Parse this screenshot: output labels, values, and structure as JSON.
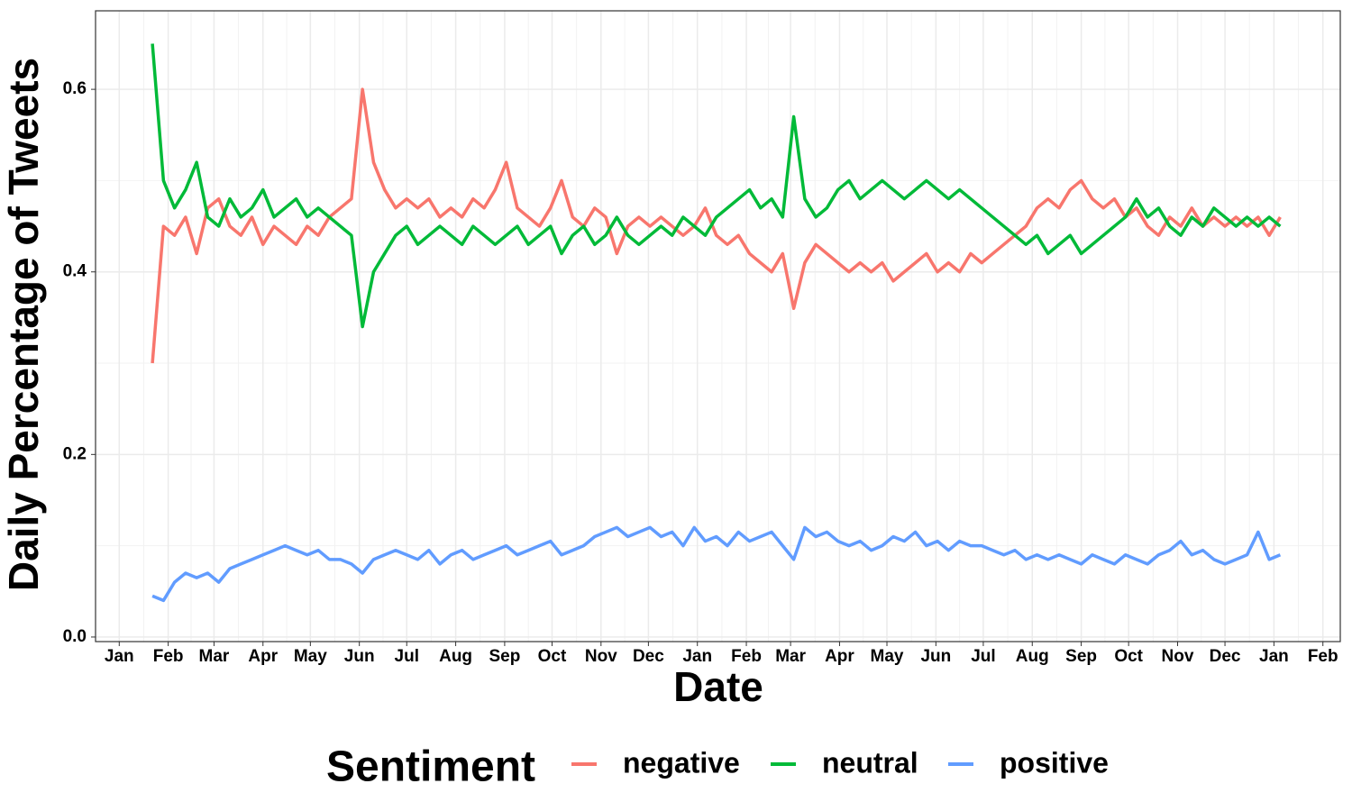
{
  "chart_data": {
    "type": "line",
    "xlabel": "Date",
    "ylabel": "Daily Percentage of Tweets",
    "legend_title": "Sentiment",
    "legend": "bottom",
    "grid": true,
    "xlim": [
      -15,
      773
    ],
    "ylim": [
      -0.005,
      0.686
    ],
    "xticks": [
      {
        "value": 0,
        "label": "Jan"
      },
      {
        "value": 31,
        "label": "Feb"
      },
      {
        "value": 60,
        "label": "Mar"
      },
      {
        "value": 91,
        "label": "Apr"
      },
      {
        "value": 121,
        "label": "May"
      },
      {
        "value": 152,
        "label": "Jun"
      },
      {
        "value": 182,
        "label": "Jul"
      },
      {
        "value": 213,
        "label": "Aug"
      },
      {
        "value": 244,
        "label": "Sep"
      },
      {
        "value": 274,
        "label": "Oct"
      },
      {
        "value": 305,
        "label": "Nov"
      },
      {
        "value": 335,
        "label": "Dec"
      },
      {
        "value": 366,
        "label": "Jan"
      },
      {
        "value": 397,
        "label": "Feb"
      },
      {
        "value": 425,
        "label": "Mar"
      },
      {
        "value": 456,
        "label": "Apr"
      },
      {
        "value": 486,
        "label": "May"
      },
      {
        "value": 517,
        "label": "Jun"
      },
      {
        "value": 547,
        "label": "Jul"
      },
      {
        "value": 578,
        "label": "Aug"
      },
      {
        "value": 609,
        "label": "Sep"
      },
      {
        "value": 639,
        "label": "Oct"
      },
      {
        "value": 670,
        "label": "Nov"
      },
      {
        "value": 700,
        "label": "Dec"
      },
      {
        "value": 731,
        "label": "Jan"
      },
      {
        "value": 762,
        "label": "Feb"
      }
    ],
    "yticks": [
      {
        "value": 0,
        "label": "0.0"
      },
      0.2,
      0.4,
      0.6
    ],
    "x": [
      21,
      28,
      35,
      42,
      49,
      56,
      63,
      70,
      77,
      84,
      91,
      98,
      105,
      112,
      119,
      126,
      133,
      140,
      147,
      154,
      161,
      168,
      175,
      182,
      189,
      196,
      203,
      210,
      217,
      224,
      231,
      238,
      245,
      252,
      259,
      266,
      273,
      280,
      287,
      294,
      301,
      308,
      315,
      322,
      329,
      336,
      343,
      350,
      357,
      364,
      371,
      378,
      385,
      392,
      399,
      406,
      413,
      420,
      427,
      434,
      441,
      448,
      455,
      462,
      469,
      476,
      483,
      490,
      497,
      504,
      511,
      518,
      525,
      532,
      539,
      546,
      553,
      560,
      567,
      574,
      581,
      588,
      595,
      602,
      609,
      616,
      623,
      630,
      637,
      644,
      651,
      658,
      665,
      672,
      679,
      686,
      693,
      700,
      707,
      714,
      721,
      728,
      735
    ],
    "series": [
      {
        "name": "negative",
        "color": "#F8766D",
        "values": [
          0.3,
          0.45,
          0.44,
          0.46,
          0.42,
          0.47,
          0.48,
          0.45,
          0.44,
          0.46,
          0.43,
          0.45,
          0.44,
          0.43,
          0.45,
          0.44,
          0.46,
          0.47,
          0.48,
          0.6,
          0.52,
          0.49,
          0.47,
          0.48,
          0.47,
          0.48,
          0.46,
          0.47,
          0.46,
          0.48,
          0.47,
          0.49,
          0.52,
          0.47,
          0.46,
          0.45,
          0.47,
          0.5,
          0.46,
          0.45,
          0.47,
          0.46,
          0.42,
          0.45,
          0.46,
          0.45,
          0.46,
          0.45,
          0.44,
          0.45,
          0.47,
          0.44,
          0.43,
          0.44,
          0.42,
          0.41,
          0.4,
          0.42,
          0.36,
          0.41,
          0.43,
          0.42,
          0.41,
          0.4,
          0.41,
          0.4,
          0.41,
          0.39,
          0.4,
          0.41,
          0.42,
          0.4,
          0.41,
          0.4,
          0.42,
          0.41,
          0.42,
          0.43,
          0.44,
          0.45,
          0.47,
          0.48,
          0.47,
          0.49,
          0.5,
          0.48,
          0.47,
          0.48,
          0.46,
          0.47,
          0.45,
          0.44,
          0.46,
          0.45,
          0.47,
          0.45,
          0.46,
          0.45,
          0.46,
          0.45,
          0.46,
          0.44,
          0.46
        ]
      },
      {
        "name": "neutral",
        "color": "#00BA38",
        "values": [
          0.65,
          0.5,
          0.47,
          0.49,
          0.52,
          0.46,
          0.45,
          0.48,
          0.46,
          0.47,
          0.49,
          0.46,
          0.47,
          0.48,
          0.46,
          0.47,
          0.46,
          0.45,
          0.44,
          0.34,
          0.4,
          0.42,
          0.44,
          0.45,
          0.43,
          0.44,
          0.45,
          0.44,
          0.43,
          0.45,
          0.44,
          0.43,
          0.44,
          0.45,
          0.43,
          0.44,
          0.45,
          0.42,
          0.44,
          0.45,
          0.43,
          0.44,
          0.46,
          0.44,
          0.43,
          0.44,
          0.45,
          0.44,
          0.46,
          0.45,
          0.44,
          0.46,
          0.47,
          0.48,
          0.49,
          0.47,
          0.48,
          0.46,
          0.57,
          0.48,
          0.46,
          0.47,
          0.49,
          0.5,
          0.48,
          0.49,
          0.5,
          0.49,
          0.48,
          0.49,
          0.5,
          0.49,
          0.48,
          0.49,
          0.48,
          0.47,
          0.46,
          0.45,
          0.44,
          0.43,
          0.44,
          0.42,
          0.43,
          0.44,
          0.42,
          0.43,
          0.44,
          0.45,
          0.46,
          0.48,
          0.46,
          0.47,
          0.45,
          0.44,
          0.46,
          0.45,
          0.47,
          0.46,
          0.45,
          0.46,
          0.45,
          0.46,
          0.45
        ]
      },
      {
        "name": "positive",
        "color": "#619CFF",
        "values": [
          0.045,
          0.04,
          0.06,
          0.07,
          0.065,
          0.07,
          0.06,
          0.075,
          0.08,
          0.085,
          0.09,
          0.095,
          0.1,
          0.095,
          0.09,
          0.095,
          0.085,
          0.085,
          0.08,
          0.07,
          0.085,
          0.09,
          0.095,
          0.09,
          0.085,
          0.095,
          0.08,
          0.09,
          0.095,
          0.085,
          0.09,
          0.095,
          0.1,
          0.09,
          0.095,
          0.1,
          0.105,
          0.09,
          0.095,
          0.1,
          0.11,
          0.115,
          0.12,
          0.11,
          0.115,
          0.12,
          0.11,
          0.115,
          0.1,
          0.12,
          0.105,
          0.11,
          0.1,
          0.115,
          0.105,
          0.11,
          0.115,
          0.1,
          0.085,
          0.12,
          0.11,
          0.115,
          0.105,
          0.1,
          0.105,
          0.095,
          0.1,
          0.11,
          0.105,
          0.115,
          0.1,
          0.105,
          0.095,
          0.105,
          0.1,
          0.1,
          0.095,
          0.09,
          0.095,
          0.085,
          0.09,
          0.085,
          0.09,
          0.085,
          0.08,
          0.09,
          0.085,
          0.08,
          0.09,
          0.085,
          0.08,
          0.09,
          0.095,
          0.105,
          0.09,
          0.095,
          0.085,
          0.08,
          0.085,
          0.09,
          0.115,
          0.085,
          0.09
        ]
      }
    ]
  }
}
